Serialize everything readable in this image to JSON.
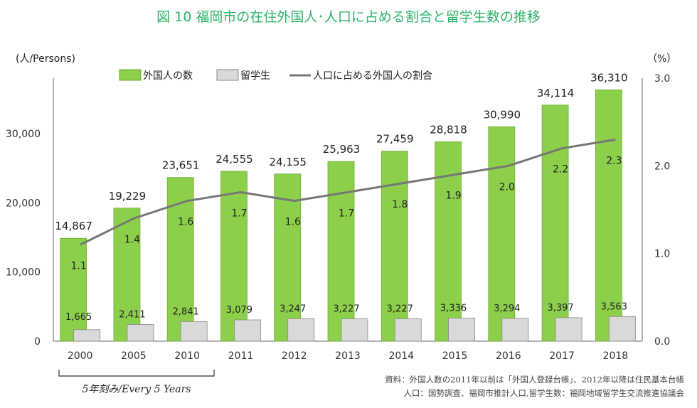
{
  "chart_data": {
    "type": "bar+line",
    "title": "図 10  福岡市の在住外国人･人口に占める割合と留学生数の推移",
    "ylabel_left": "(人/Persons)",
    "ylabel_right": "（%）",
    "categories": [
      "2000",
      "2005",
      "2010",
      "2011",
      "2012",
      "2013",
      "2014",
      "2015",
      "2016",
      "2017",
      "2018"
    ],
    "series": [
      {
        "name": "外国人の数",
        "type": "bar",
        "axis": "left",
        "color": "#8ccf4a",
        "values": [
          14867,
          19229,
          23651,
          24555,
          24155,
          25963,
          27459,
          28818,
          30990,
          34114,
          36310
        ],
        "labels": [
          "14,867",
          "19,229",
          "23,651",
          "24,555",
          "24,155",
          "25,963",
          "27,459",
          "28,818",
          "30,990",
          "34,114",
          "36,310"
        ]
      },
      {
        "name": "留学生",
        "type": "bar",
        "axis": "left",
        "color": "#d9d9d9",
        "values": [
          1665,
          2411,
          2841,
          3079,
          3247,
          3227,
          3227,
          3336,
          3294,
          3397,
          3563
        ],
        "labels": [
          "1,665",
          "2,411",
          "2,841",
          "3,079",
          "3,247",
          "3,227",
          "3,227",
          "3,336",
          "3,294",
          "3,397",
          "3,563"
        ]
      },
      {
        "name": "人口に占める外国人の割合",
        "type": "line",
        "axis": "right",
        "color": "#777777",
        "values": [
          1.1,
          1.4,
          1.6,
          1.7,
          1.6,
          1.7,
          1.8,
          1.9,
          2.0,
          2.2,
          2.3
        ],
        "labels": [
          "1.1",
          "1.4",
          "1.6",
          "1.7",
          "1.6",
          "1.7",
          "1.8",
          "1.9",
          "2.0",
          "2.2",
          "2.3"
        ]
      }
    ],
    "yticks_left": [
      "0",
      "10,000",
      "20,000",
      "30,000"
    ],
    "yticks_left_values": [
      0,
      10000,
      20000,
      30000
    ],
    "ylim_left": [
      0,
      38000
    ],
    "yticks_right": [
      "0.0",
      "1.0",
      "2.0",
      "3.0"
    ],
    "yticks_right_values": [
      0,
      1,
      2,
      3
    ],
    "ylim_right": [
      0,
      3
    ],
    "legend_placement": "top",
    "grid": false,
    "bracket_label": "5年刻み/Every 5 Years",
    "notes": [
      "資料：外国人数の2011年以前は「外国人登録台帳」、2012年以降は住民基本台帳",
      "人口：国勢調査、福岡市推計人口,留学生数：福岡地域留学生交流推進協議会"
    ],
    "title_color": "#2bb36a"
  }
}
